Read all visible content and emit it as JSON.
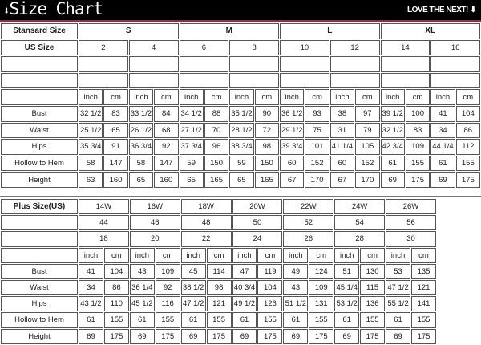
{
  "header": {
    "title": "Size Chart",
    "title_icon": "arrow-down-icon",
    "tagline": "LOVE THE NEXT!",
    "tagline_icon": "arrow-down-icon",
    "accent": "#c8143c"
  },
  "standard": {
    "label_standard": "Stansard Size",
    "label_us": "US Size",
    "groups": [
      "S",
      "M",
      "L",
      "XL"
    ],
    "us_sizes": [
      "2",
      "4",
      "6",
      "8",
      "10",
      "12",
      "14",
      "16"
    ],
    "unit_inch": "inch",
    "unit_cm": "cm",
    "rows": [
      {
        "label": "Bust",
        "values": [
          "32 1/2",
          "83",
          "33 1/2",
          "84",
          "34 1/2",
          "88",
          "35 1/2",
          "90",
          "36 1/2",
          "93",
          "38",
          "97",
          "39 1/2",
          "100",
          "41",
          "104"
        ]
      },
      {
        "label": "Waist",
        "values": [
          "25 1/2",
          "65",
          "26 1/2",
          "68",
          "27 1/2",
          "70",
          "28 1/2",
          "72",
          "29 1/2",
          "75",
          "31",
          "79",
          "32 1/2",
          "83",
          "34",
          "86"
        ]
      },
      {
        "label": "Hips",
        "values": [
          "35 3/4",
          "91",
          "36 3/4",
          "92",
          "37 3/4",
          "96",
          "38 3/4",
          "98",
          "39 3/4",
          "101",
          "41 1/4",
          "105",
          "42 3/4",
          "109",
          "44 1/4",
          "112"
        ]
      },
      {
        "label": "Hollow to Hem",
        "values": [
          "58",
          "147",
          "58",
          "147",
          "59",
          "150",
          "59",
          "150",
          "60",
          "152",
          "60",
          "152",
          "61",
          "155",
          "61",
          "155"
        ]
      },
      {
        "label": "Height",
        "values": [
          "63",
          "160",
          "65",
          "160",
          "65",
          "165",
          "65",
          "165",
          "67",
          "170",
          "67",
          "170",
          "69",
          "175",
          "69",
          "175"
        ]
      }
    ]
  },
  "plus": {
    "label": "Plus Size(US)",
    "sizes": [
      "14W",
      "16W",
      "18W",
      "20W",
      "22W",
      "24W",
      "26W"
    ],
    "row2": [
      "44",
      "46",
      "48",
      "50",
      "52",
      "54",
      "56"
    ],
    "row3": [
      "18",
      "20",
      "22",
      "24",
      "26",
      "28",
      "30"
    ],
    "unit_inch": "inch",
    "unit_cm": "cm",
    "rows": [
      {
        "label": "Bust",
        "values": [
          "41",
          "104",
          "43",
          "109",
          "45",
          "114",
          "47",
          "119",
          "49",
          "124",
          "51",
          "130",
          "53",
          "135"
        ]
      },
      {
        "label": "Waist",
        "values": [
          "34",
          "86",
          "36 1/4",
          "92",
          "38 1/2",
          "98",
          "40 3/4",
          "104",
          "43",
          "109",
          "45 1/4",
          "115",
          "47 1/2",
          "121"
        ]
      },
      {
        "label": "Hips",
        "values": [
          "43 1/2",
          "110",
          "45 1/2",
          "116",
          "47 1/2",
          "121",
          "49 1/2",
          "126",
          "51 1/2",
          "131",
          "53 1/2",
          "136",
          "55 1/2",
          "141"
        ]
      },
      {
        "label": "Hollow to Hem",
        "values": [
          "61",
          "155",
          "61",
          "155",
          "61",
          "155",
          "61",
          "155",
          "61",
          "155",
          "61",
          "155",
          "61",
          "155"
        ]
      },
      {
        "label": "Height",
        "values": [
          "69",
          "175",
          "69",
          "175",
          "69",
          "175",
          "69",
          "175",
          "69",
          "175",
          "69",
          "175",
          "69",
          "175"
        ]
      }
    ]
  }
}
